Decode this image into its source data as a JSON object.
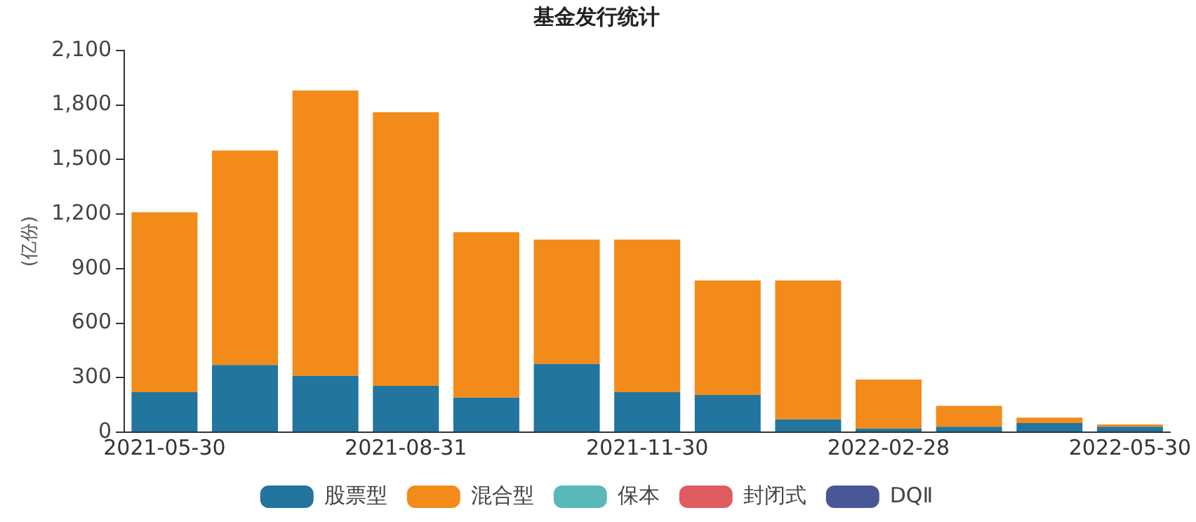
{
  "chart_data": {
    "type": "bar",
    "title": "基金发行统计",
    "ylabel": "(亿份)",
    "categories": [
      "2021-05-30",
      null,
      null,
      "2021-08-31",
      null,
      null,
      "2021-11-30",
      null,
      null,
      "2022-02-28",
      null,
      null,
      "2022-05-30"
    ],
    "stacked": true,
    "ylim": [
      0,
      2100
    ],
    "yticks": [
      0,
      300,
      600,
      900,
      {
        "value": 1200,
        "label": "1,200"
      },
      {
        "value": 1500,
        "label": "1,500"
      },
      {
        "value": 1800,
        "label": "1,800"
      },
      {
        "value": 2100,
        "label": "2,100"
      }
    ],
    "grid": false,
    "legend": "bottom",
    "series": [
      {
        "name": "股票型",
        "color": "#21759f",
        "values": [
          220,
          370,
          310,
          255,
          190,
          375,
          220,
          205,
          70,
          20,
          30,
          50,
          30
        ]
      },
      {
        "name": "混合型",
        "color": "#f28b1a",
        "values": [
          990,
          1180,
          1570,
          1505,
          910,
          685,
          840,
          630,
          765,
          270,
          115,
          30,
          12
        ]
      },
      {
        "name": "保本",
        "color": "#5ab8b8",
        "values": [
          0,
          0,
          0,
          0,
          0,
          0,
          0,
          0,
          0,
          0,
          0,
          0,
          0
        ]
      },
      {
        "name": "封闭式",
        "color": "#e05b5f",
        "values": [
          0,
          0,
          0,
          0,
          0,
          0,
          0,
          0,
          0,
          0,
          0,
          0,
          0
        ]
      },
      {
        "name": "DQⅡ",
        "color": "#4a5796",
        "values": [
          0,
          0,
          0,
          0,
          0,
          0,
          0,
          0,
          0,
          0,
          0,
          0,
          0
        ]
      }
    ]
  }
}
